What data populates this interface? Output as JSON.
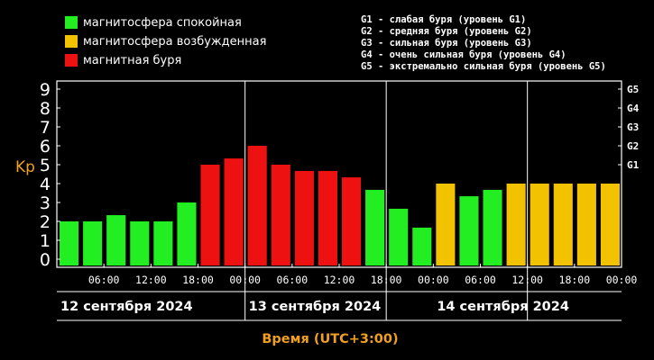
{
  "legend": [
    {
      "label": "магнитосфера спокойная",
      "color": "#22ee22"
    },
    {
      "label": "магнитосфера возбужденная",
      "color": "#f2c200"
    },
    {
      "label": "магнитная буря",
      "color": "#ee1111"
    }
  ],
  "storm_levels": [
    "G1 - слабая буря (уровень G1)",
    "G2 - средняя буря (уровень G2)",
    "G3 - сильная буря (уровень G3)",
    "G4 - очень сильная буря (уровень G4)",
    "G5 - экстремально сильная буря (уровень G5)"
  ],
  "chart_data": {
    "type": "bar",
    "ylabel": "Kp",
    "xlabel": "Время (UTC+3:00)",
    "ylim": [
      0,
      9
    ],
    "yticks": [
      "0",
      "1",
      "2",
      "3",
      "4",
      "5",
      "6",
      "7",
      "8",
      "9"
    ],
    "g_levels": [
      {
        "label": "G1",
        "value": 5
      },
      {
        "label": "G2",
        "value": 6
      },
      {
        "label": "G3",
        "value": 7
      },
      {
        "label": "G4",
        "value": 8
      },
      {
        "label": "G5",
        "value": 9
      }
    ],
    "time_ticks": [
      "06:00",
      "12:00",
      "18:00",
      "00:00",
      "06:00",
      "12:00",
      "18:00",
      "00:00",
      "06:00",
      "12:00",
      "18:00",
      "00:00"
    ],
    "days": [
      "12 сентября 2024",
      "13 сентября 2024",
      "14 сентября 2024"
    ],
    "colors": {
      "quiet": "#22ee22",
      "active": "#f2c200",
      "storm": "#ee1111"
    },
    "values": [
      2.0,
      2.0,
      2.33,
      2.0,
      2.0,
      3.0,
      5.0,
      5.33,
      6.0,
      5.0,
      4.67,
      4.67,
      4.33,
      3.67,
      2.67,
      1.67,
      4.0,
      3.33,
      3.67,
      4.0,
      4.0,
      4.0,
      4.0,
      4.0
    ],
    "status": [
      "quiet",
      "quiet",
      "quiet",
      "quiet",
      "quiet",
      "quiet",
      "storm",
      "storm",
      "storm",
      "storm",
      "storm",
      "storm",
      "storm",
      "quiet",
      "quiet",
      "quiet",
      "active",
      "quiet",
      "quiet",
      "active",
      "active",
      "active",
      "active",
      "active"
    ]
  }
}
